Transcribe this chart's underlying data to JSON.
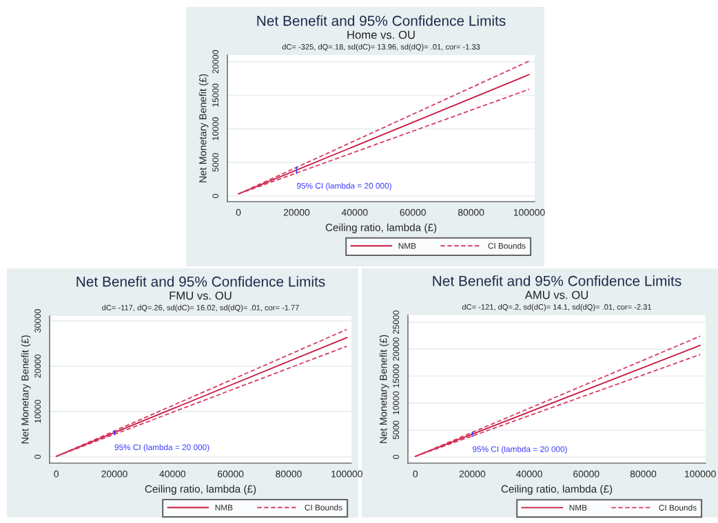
{
  "chart_data": [
    {
      "type": "line",
      "title": "Net Benefit and 95% Confidence Limits",
      "subtitle": "Home vs. OU",
      "xlabel": "Ceiling ratio, lambda (£)",
      "ylabel": "Net Monetary Benefit (£)",
      "annotations": [
        "dC= -325, dQ=.18, sd(dC)= 13.96, sd(dQ)= .01, cor= -1.33",
        "95% CI (lambda = 20 000)"
      ],
      "series": [
        {
          "name": "NMB",
          "color": "#c8143c",
          "line_style": "solid",
          "x": [
            0,
            100000
          ],
          "values": [
            300,
            18100
          ]
        },
        {
          "name": "CI Bounds",
          "color": "#d83a62",
          "line_style": "dashed",
          "x": [
            0,
            100000
          ],
          "values": [
            300,
            20100
          ]
        },
        {
          "color": "#d83a62",
          "line_style": "dashed",
          "x": [
            0,
            100000
          ],
          "values": [
            300,
            15900
          ]
        },
        {
          "color": "#3a3aff",
          "line_style": "solid",
          "x": [
            20000,
            20000
          ],
          "values": [
            3400,
            4300
          ]
        }
      ],
      "xlim": [
        -3800,
        101900
      ],
      "ylim": [
        -850,
        21000
      ],
      "xticks": [
        0,
        20000,
        40000,
        60000,
        80000,
        100000
      ],
      "yticks": [
        0,
        5000,
        10000,
        15000,
        20000
      ],
      "grid": "y",
      "legend": "bottom right"
    },
    {
      "type": "line",
      "title": "Net Benefit and 95% Confidence Limits",
      "subtitle": "FMU vs. OU",
      "xlabel": "Ceiling ratio, lambda (£)",
      "ylabel": "Net Monetary Benefit (£)",
      "annotations": [
        "dC= -117, dQ=.26, sd(dC)= 16.02, sd(dQ)= .01, cor= -1.77",
        "95% CI (lambda = 20 000)"
      ],
      "series": [
        {
          "name": "NMB",
          "color": "#c8143c",
          "line_style": "solid",
          "x": [
            0,
            100000
          ],
          "values": [
            100,
            26300
          ]
        },
        {
          "name": "CI Bounds",
          "color": "#d83a62",
          "line_style": "dashed",
          "x": [
            0,
            100000
          ],
          "values": [
            100,
            28100
          ]
        },
        {
          "color": "#d83a62",
          "line_style": "dashed",
          "x": [
            0,
            100000
          ],
          "values": [
            100,
            24400
          ]
        },
        {
          "color": "#3a3aff",
          "line_style": "solid",
          "x": [
            20000,
            20000
          ],
          "values": [
            4900,
            5700
          ]
        }
      ],
      "xlim": [
        -2300,
        101600
      ],
      "ylim": [
        -1400,
        31100
      ],
      "xticks": [
        0,
        20000,
        40000,
        60000,
        80000,
        100000
      ],
      "yticks": [
        0,
        10000,
        20000,
        30000
      ],
      "grid": "y",
      "legend": "bottom right"
    },
    {
      "type": "line",
      "title": "Net Benefit and 95% Confidence Limits",
      "subtitle": "AMU vs. OU",
      "xlabel": "Ceiling ratio, lambda (£)",
      "ylabel": "Net Monetary Benefit (£)",
      "annotations": [
        "dC= -121, dQ=.2, sd(dC)= 14.1, sd(dQ)= .01, cor= -2.31",
        "95% CI (lambda = 20 000)"
      ],
      "series": [
        {
          "name": "NMB",
          "color": "#c8143c",
          "line_style": "solid",
          "x": [
            0,
            100000
          ],
          "values": [
            100,
            20700
          ]
        },
        {
          "name": "CI Bounds",
          "color": "#d83a62",
          "line_style": "dashed",
          "x": [
            0,
            100000
          ],
          "values": [
            100,
            22400
          ]
        },
        {
          "color": "#d83a62",
          "line_style": "dashed",
          "x": [
            0,
            100000
          ],
          "values": [
            100,
            19000
          ]
        },
        {
          "color": "#3a3aff",
          "line_style": "solid",
          "x": [
            20000,
            20000
          ],
          "values": [
            3800,
            4600
          ]
        }
      ],
      "xlim": [
        -2600,
        101900
      ],
      "ylim": [
        -1150,
        26300
      ],
      "xticks": [
        0,
        20000,
        40000,
        60000,
        80000,
        100000
      ],
      "yticks": [
        0,
        5000,
        10000,
        15000,
        20000,
        25000
      ],
      "grid": "y",
      "legend": "bottom right"
    }
  ]
}
